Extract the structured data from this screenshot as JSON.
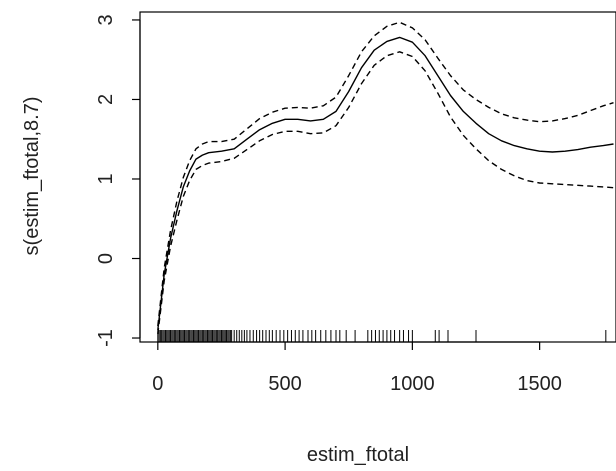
{
  "chart_data": {
    "type": "line",
    "title": "",
    "xlabel": "estim_ftotal",
    "ylabel": "s(estim_ftotal,8.7)",
    "xlim": [
      -70,
      1800
    ],
    "ylim": [
      -1.05,
      3.1
    ],
    "grid": false,
    "x_ticks": [
      0,
      500,
      1000,
      1500
    ],
    "y_ticks": [
      -1,
      0,
      1,
      2,
      3
    ],
    "x_tick_labels": [
      "0",
      "500",
      "1000",
      "1500"
    ],
    "y_tick_labels": [
      "-1",
      "0",
      "1",
      "2",
      "3"
    ],
    "series": [
      {
        "style": "solid",
        "x": [
          0,
          25,
          50,
          75,
          100,
          125,
          150,
          175,
          200,
          250,
          300,
          350,
          400,
          450,
          500,
          550,
          600,
          650,
          700,
          750,
          800,
          850,
          900,
          950,
          1000,
          1050,
          1100,
          1150,
          1200,
          1250,
          1300,
          1350,
          1400,
          1450,
          1500,
          1550,
          1600,
          1650,
          1700,
          1750,
          1790
        ],
        "y": [
          -0.9,
          -0.2,
          0.25,
          0.6,
          0.9,
          1.1,
          1.25,
          1.3,
          1.33,
          1.35,
          1.38,
          1.5,
          1.62,
          1.7,
          1.75,
          1.75,
          1.73,
          1.75,
          1.85,
          2.1,
          2.4,
          2.62,
          2.73,
          2.78,
          2.72,
          2.55,
          2.3,
          2.05,
          1.85,
          1.7,
          1.57,
          1.48,
          1.42,
          1.38,
          1.35,
          1.34,
          1.35,
          1.37,
          1.4,
          1.42,
          1.44
        ]
      },
      {
        "style": "dashed",
        "x": [
          0,
          25,
          50,
          75,
          100,
          125,
          150,
          175,
          200,
          250,
          300,
          350,
          400,
          450,
          500,
          550,
          600,
          650,
          700,
          750,
          800,
          850,
          900,
          950,
          1000,
          1050,
          1100,
          1150,
          1200,
          1250,
          1300,
          1350,
          1400,
          1450,
          1500,
          1550,
          1600,
          1650,
          1700,
          1750,
          1790
        ],
        "y": [
          -0.85,
          -0.12,
          0.35,
          0.72,
          1.02,
          1.23,
          1.38,
          1.44,
          1.47,
          1.47,
          1.5,
          1.63,
          1.76,
          1.84,
          1.89,
          1.9,
          1.89,
          1.92,
          2.03,
          2.3,
          2.6,
          2.8,
          2.92,
          2.97,
          2.9,
          2.75,
          2.52,
          2.3,
          2.12,
          2.0,
          1.9,
          1.82,
          1.77,
          1.74,
          1.72,
          1.73,
          1.76,
          1.8,
          1.86,
          1.92,
          1.96
        ]
      },
      {
        "style": "dashed",
        "x": [
          0,
          25,
          50,
          75,
          100,
          125,
          150,
          175,
          200,
          250,
          300,
          350,
          400,
          450,
          500,
          550,
          600,
          650,
          700,
          750,
          800,
          850,
          900,
          950,
          1000,
          1050,
          1100,
          1150,
          1200,
          1250,
          1300,
          1350,
          1400,
          1450,
          1500,
          1550,
          1600,
          1650,
          1700,
          1750,
          1790
        ],
        "y": [
          -0.95,
          -0.28,
          0.15,
          0.48,
          0.78,
          0.98,
          1.12,
          1.17,
          1.2,
          1.22,
          1.26,
          1.37,
          1.48,
          1.56,
          1.6,
          1.6,
          1.57,
          1.58,
          1.67,
          1.9,
          2.2,
          2.43,
          2.55,
          2.6,
          2.54,
          2.36,
          2.08,
          1.78,
          1.55,
          1.38,
          1.23,
          1.12,
          1.04,
          0.98,
          0.95,
          0.94,
          0.93,
          0.92,
          0.91,
          0.9,
          0.89
        ]
      }
    ],
    "rug_x": [
      0,
      5,
      10,
      15,
      20,
      25,
      30,
      35,
      40,
      45,
      50,
      55,
      60,
      65,
      70,
      75,
      80,
      85,
      90,
      95,
      100,
      105,
      110,
      115,
      120,
      125,
      130,
      135,
      140,
      145,
      150,
      155,
      160,
      165,
      170,
      175,
      180,
      185,
      190,
      195,
      200,
      205,
      210,
      215,
      220,
      225,
      230,
      235,
      240,
      245,
      250,
      255,
      260,
      265,
      270,
      275,
      280,
      285,
      290,
      300,
      310,
      320,
      330,
      340,
      350,
      362,
      375,
      388,
      400,
      412,
      425,
      438,
      450,
      465,
      480,
      495,
      510,
      525,
      540,
      555,
      570,
      590,
      605,
      620,
      640,
      660,
      680,
      700,
      715,
      740,
      775,
      825,
      840,
      855,
      870,
      885,
      900,
      915,
      930,
      950,
      965,
      985,
      1000,
      1090,
      1105,
      1140,
      1250,
      1760
    ]
  }
}
